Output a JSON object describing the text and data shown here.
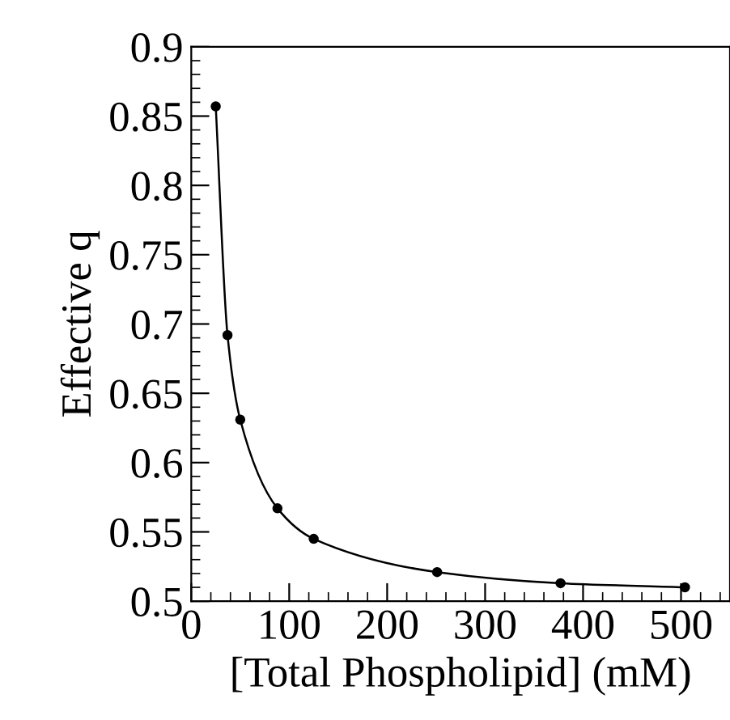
{
  "chart_data": {
    "type": "line",
    "xlabel": "[Total Phospholipid] (mM)",
    "ylabel": "Effective q",
    "x": [
      25,
      37,
      50,
      88,
      125,
      251,
      377,
      504
    ],
    "series": [
      {
        "color": "#000000",
        "values": [
          0.857,
          0.692,
          0.631,
          0.567,
          0.545,
          0.521,
          0.513,
          0.51
        ]
      }
    ],
    "marker": "circle",
    "line_style": "solid",
    "xlim": [
      0,
      550
    ],
    "xticks": [
      0,
      100,
      200,
      300,
      400,
      500
    ],
    "ylim": [
      0.5,
      0.9
    ],
    "yticks": [
      0.5,
      {
        "value": 0.55,
        "label": "0.55"
      },
      0.6,
      {
        "value": 0.65,
        "label": "0.65"
      },
      0.7,
      {
        "value": 0.75,
        "label": "0.75"
      },
      0.8,
      {
        "value": 0.85,
        "label": "0.85"
      },
      0.9
    ],
    "grid": false
  }
}
